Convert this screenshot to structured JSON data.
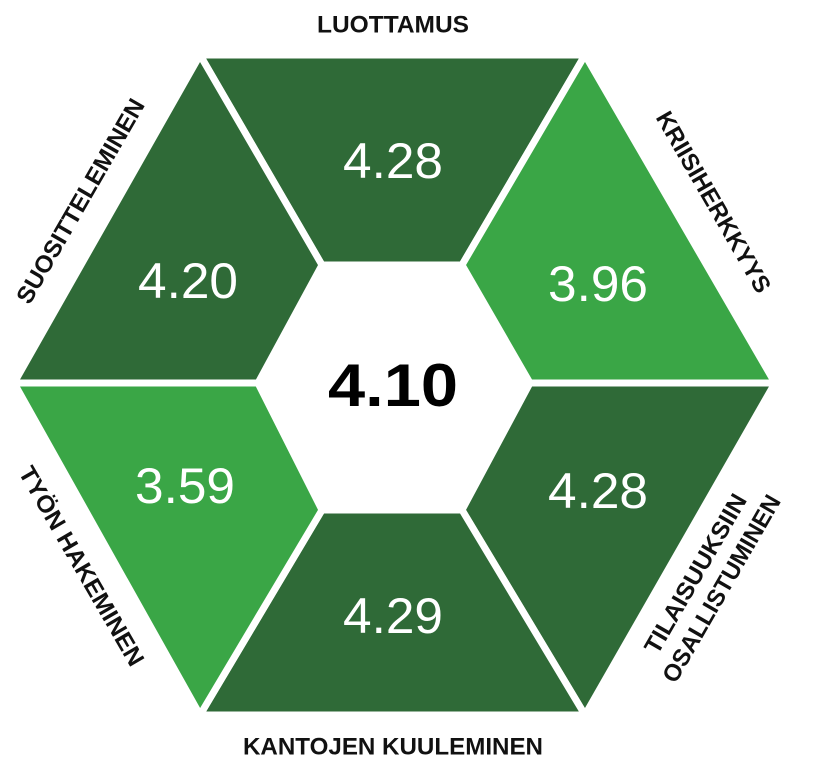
{
  "center": {
    "value": "4.10"
  },
  "segments": [
    {
      "label": "LUOTTAMUS",
      "value": "4.28",
      "color": "#2f6a37"
    },
    {
      "label": "KRIISIHERKKYYS",
      "value": "3.96",
      "color": "#3aa646"
    },
    {
      "label_lines": [
        "TILAISUUKSIIN",
        "OSALLISTUMINEN"
      ],
      "value": "4.28",
      "color": "#2f6a37"
    },
    {
      "label": "KANTOJEN KUULEMINEN",
      "value": "4.29",
      "color": "#2f6a37"
    },
    {
      "label": "TYÖN HAKEMINEN",
      "value": "3.59",
      "color": "#3aa646"
    },
    {
      "label": "SUOSITTELEMINEN",
      "value": "4.20",
      "color": "#2f6a37"
    }
  ]
}
